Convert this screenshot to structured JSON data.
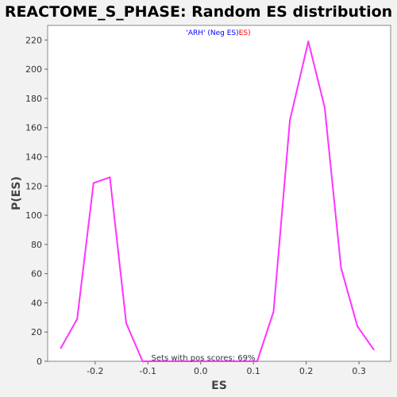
{
  "chart_data": {
    "type": "line",
    "title": "REACTOME_S_PHASE: Random ES distribution",
    "xlabel": "ES",
    "ylabel": "P(ES)",
    "xlim": [
      -0.29,
      0.36
    ],
    "ylim": [
      0,
      230
    ],
    "x_ticks": [
      -0.2,
      -0.1,
      0.0,
      0.1,
      0.2,
      0.3
    ],
    "x_tick_labels": [
      "-0.2",
      "-0.1",
      "0.0",
      "0.1",
      "0.2",
      "0.3"
    ],
    "y_ticks": [
      0,
      20,
      40,
      60,
      80,
      100,
      120,
      140,
      160,
      180,
      200,
      220
    ],
    "y_tick_labels": [
      "0",
      "20",
      "40",
      "60",
      "80",
      "100",
      "120",
      "140",
      "160",
      "180",
      "200",
      "220"
    ],
    "grid": false,
    "legend": {
      "placement": "top-center",
      "parts": [
        {
          "text": "'ARH' (Neg ES)",
          "color": "#0000ff"
        },
        {
          "text": "ES)",
          "color": "#ff0000"
        }
      ]
    },
    "annotation": "Sets with pos scores: 69%",
    "series": [
      {
        "color": "#ff33ff",
        "points": [
          {
            "x": -0.265,
            "y": 9
          },
          {
            "x": -0.234,
            "y": 29
          },
          {
            "x": -0.203,
            "y": 122
          },
          {
            "x": -0.172,
            "y": 126
          },
          {
            "x": -0.141,
            "y": 26
          },
          {
            "x": -0.11,
            "y": 0
          },
          {
            "x": -0.079,
            "y": 0
          },
          {
            "x": -0.048,
            "y": 0
          },
          {
            "x": -0.017,
            "y": 0
          },
          {
            "x": 0.014,
            "y": 0
          },
          {
            "x": 0.045,
            "y": 0
          },
          {
            "x": 0.076,
            "y": 0
          },
          {
            "x": 0.107,
            "y": 0
          },
          {
            "x": 0.138,
            "y": 34
          },
          {
            "x": 0.169,
            "y": 165
          },
          {
            "x": 0.204,
            "y": 219
          },
          {
            "x": 0.235,
            "y": 174
          },
          {
            "x": 0.266,
            "y": 64
          },
          {
            "x": 0.297,
            "y": 24
          },
          {
            "x": 0.328,
            "y": 8
          }
        ]
      }
    ]
  }
}
